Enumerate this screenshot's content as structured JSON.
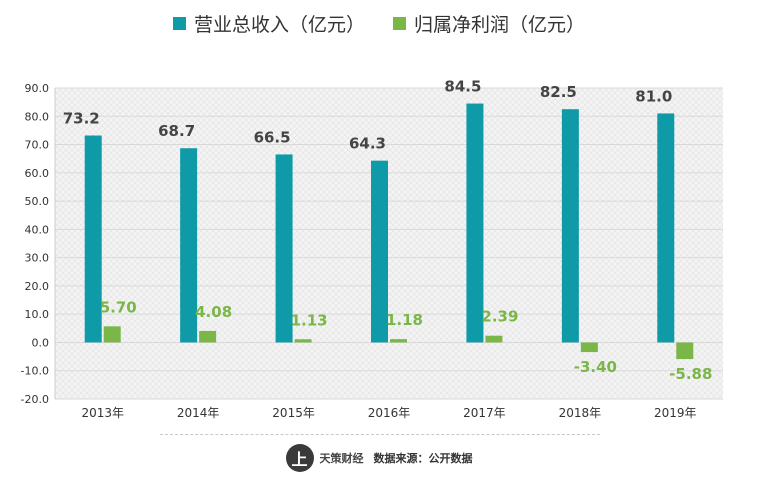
{
  "chart_data": {
    "type": "bar",
    "categories": [
      "2013年",
      "2014年",
      "2015年",
      "2016年",
      "2017年",
      "2018年",
      "2019年"
    ],
    "series": [
      {
        "name": "营业总收入（亿元）",
        "values": [
          73.2,
          68.7,
          66.5,
          64.3,
          84.5,
          82.5,
          81.0
        ],
        "color": "#0f9aa8",
        "labels": [
          "73.2",
          "68.7",
          "66.5",
          "64.3",
          "84.5",
          "82.5",
          "81.0"
        ]
      },
      {
        "name": "归属净利润（亿元）",
        "values": [
          5.7,
          4.08,
          1.13,
          1.18,
          2.39,
          -3.4,
          -5.88
        ],
        "color": "#7ab648",
        "labels": [
          "5.70",
          "4.08",
          "1.13",
          "1.18",
          "2.39",
          "-3.40",
          "-5.88"
        ]
      }
    ],
    "ylim": [
      -20,
      90
    ],
    "yticks": [
      "90.0",
      "80.0",
      "70.0",
      "60.0",
      "50.0",
      "40.0",
      "30.0",
      "20.0",
      "10.0",
      "0.0",
      "-10.0",
      "-20.0"
    ],
    "grid": true,
    "legend_position": "top-center"
  },
  "legend": {
    "revenue": "营业总收入（亿元）",
    "profit": "归属净利润（亿元）"
  },
  "footer": {
    "logo_mark": "上",
    "logo_text": "天策财经",
    "source": "数据来源：公开数据"
  },
  "colors": {
    "revenue": "#0f9aa8",
    "profit": "#7ab648",
    "profit_label": "#7ab648"
  }
}
